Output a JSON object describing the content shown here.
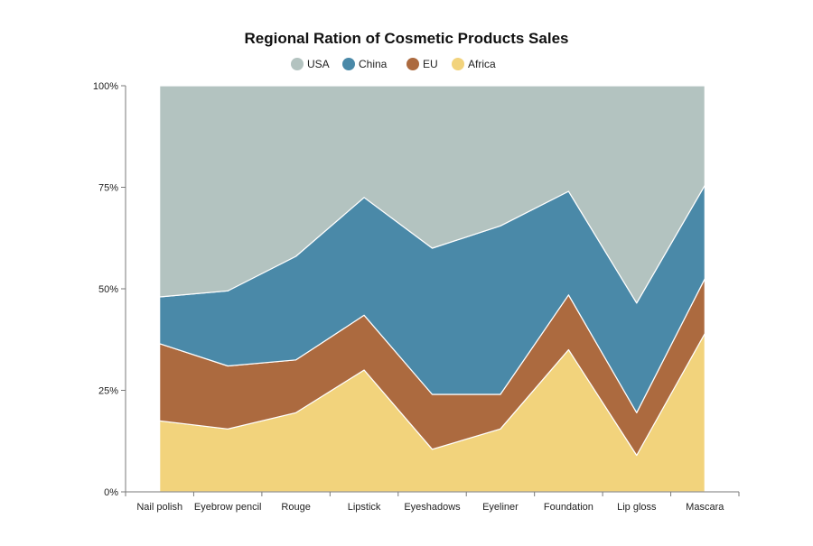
{
  "chart_data": {
    "type": "area",
    "stacked": true,
    "normalized": true,
    "title": "Regional Ration of Cosmetic Products Sales",
    "categories": [
      "Nail polish",
      "Eyebrow pencil",
      "Rouge",
      "Lipstick",
      "Eyeshadows",
      "Eyeliner",
      "Foundation",
      "Lip gloss",
      "Mascara"
    ],
    "y_ticks": [
      "0%",
      "25%",
      "50%",
      "75%",
      "100%"
    ],
    "ylim": [
      0,
      100
    ],
    "legend_position": "top-center",
    "grid": false,
    "series": [
      {
        "name": "Africa",
        "color": "#f2d37c",
        "values": [
          17.5,
          15.5,
          19.5,
          30,
          10.5,
          15.5,
          35,
          9,
          39
        ]
      },
      {
        "name": "EU",
        "color": "#ac6a3f",
        "values": [
          19,
          15.5,
          13,
          13.5,
          13.5,
          8.5,
          13.5,
          10.5,
          13.5
        ]
      },
      {
        "name": "China",
        "color": "#4a89a8",
        "values": [
          11.5,
          18.5,
          25.5,
          29,
          36,
          41.5,
          25.5,
          27,
          23
        ]
      },
      {
        "name": "USA",
        "color": "#b3c3c0",
        "values": [
          52,
          50.5,
          42,
          27.5,
          40,
          34.5,
          26,
          53.5,
          24.5
        ]
      }
    ]
  }
}
